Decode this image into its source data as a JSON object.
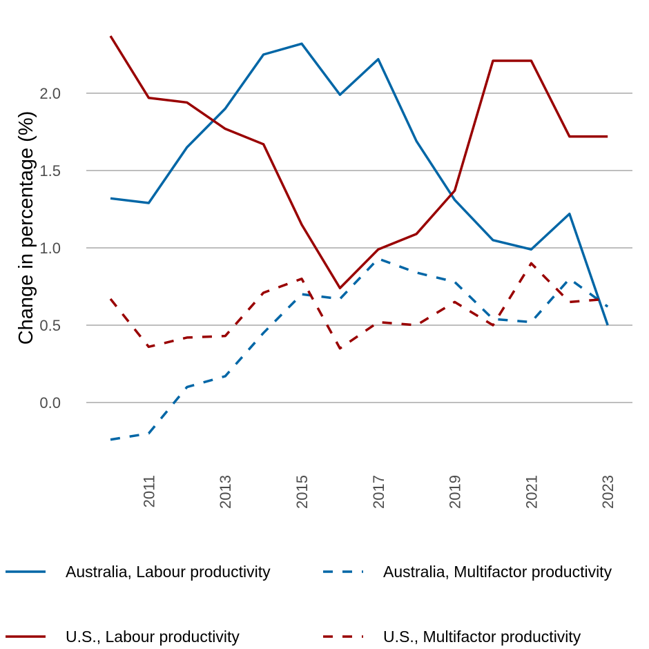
{
  "chart_data": {
    "type": "line",
    "title": "",
    "xlabel": "",
    "ylabel": "Change in percentage (%)",
    "x": [
      2010,
      2011,
      2012,
      2013,
      2014,
      2015,
      2016,
      2017,
      2018,
      2019,
      2020,
      2021,
      2022,
      2023
    ],
    "xticks": [
      "2011",
      "2013",
      "2015",
      "2017",
      "2019",
      "2021",
      "2023"
    ],
    "yticks": [
      "0.0",
      "0.5",
      "1.0",
      "1.5",
      "2.0"
    ],
    "ylim": [
      -0.25,
      2.4
    ],
    "grid": "horizontal",
    "legend_position": "bottom",
    "series": [
      {
        "name": "Australia, Labour productivity",
        "color": "#0066a6",
        "dash": "solid",
        "values": [
          1.32,
          1.29,
          1.65,
          1.9,
          2.25,
          2.32,
          1.99,
          2.22,
          1.69,
          1.31,
          1.05,
          0.99,
          1.22,
          0.5
        ]
      },
      {
        "name": "Australia, Multifactor productivity",
        "color": "#0066a6",
        "dash": "dashed",
        "values": [
          -0.24,
          -0.2,
          0.1,
          0.17,
          0.45,
          0.7,
          0.67,
          0.93,
          0.84,
          0.78,
          0.54,
          0.52,
          0.8,
          0.62
        ]
      },
      {
        "name": "U.S., Labour productivity",
        "color": "#990000",
        "dash": "solid",
        "values": [
          2.37,
          1.97,
          1.94,
          1.77,
          1.67,
          1.15,
          0.74,
          0.99,
          1.09,
          1.37,
          2.21,
          2.21,
          1.72,
          1.72
        ]
      },
      {
        "name": "U.S., Multifactor productivity",
        "color": "#990000",
        "dash": "dashed",
        "values": [
          0.67,
          0.36,
          0.42,
          0.43,
          0.71,
          0.8,
          0.35,
          0.52,
          0.5,
          0.65,
          0.5,
          0.9,
          0.65,
          0.67
        ]
      }
    ]
  }
}
